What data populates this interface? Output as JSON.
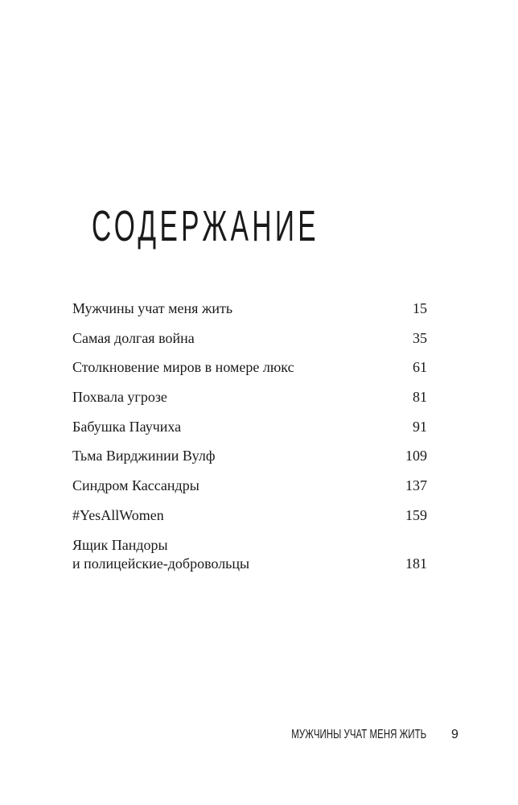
{
  "title": "СОДЕРЖАНИЕ",
  "toc": [
    {
      "label": "Мужчины учат меня жить",
      "page": "15"
    },
    {
      "label": "Самая долгая война",
      "page": "35"
    },
    {
      "label": "Столкновение миров в номере люкс",
      "page": "61"
    },
    {
      "label": "Похвала угрозе",
      "page": "81"
    },
    {
      "label": "Бабушка Паучиха",
      "page": "91"
    },
    {
      "label": "Тьма Вирджинии Вулф",
      "page": "109"
    },
    {
      "label": "Синдром Кассандры",
      "page": "137"
    },
    {
      "label": "#YesAllWomen",
      "page": "159"
    },
    {
      "label": "Ящик Пандоры\nи полицейские-добровольцы",
      "page": "181"
    }
  ],
  "footer": {
    "running_head": "МУЖЧИНЫ УЧАТ МЕНЯ ЖИТЬ",
    "page_number": "9"
  }
}
